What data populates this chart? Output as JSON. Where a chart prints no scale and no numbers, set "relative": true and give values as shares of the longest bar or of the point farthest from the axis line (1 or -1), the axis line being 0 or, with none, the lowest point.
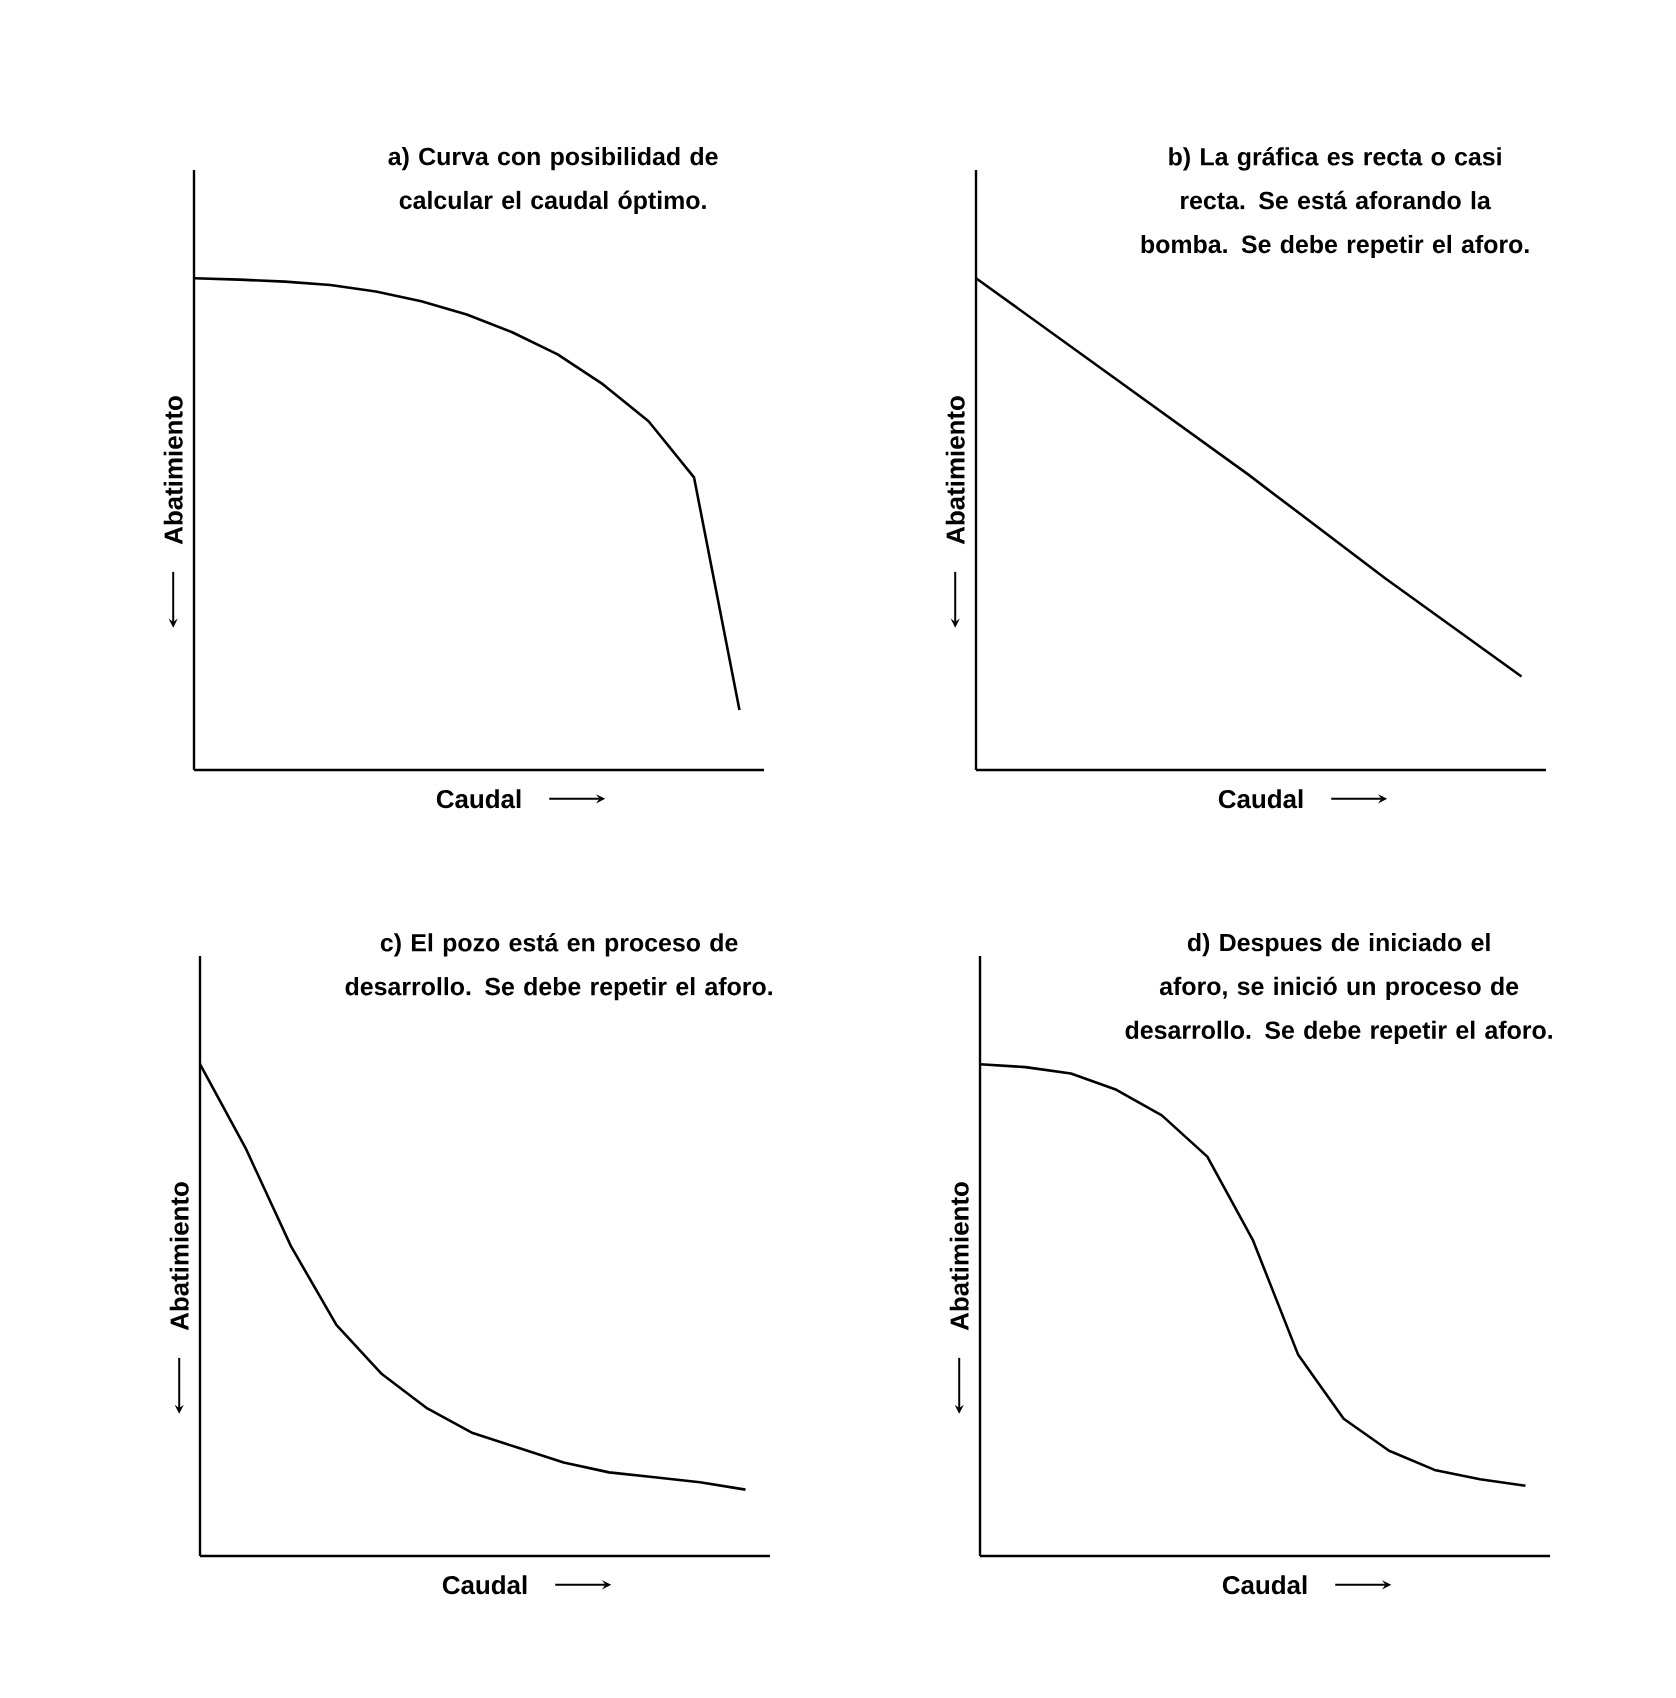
{
  "chart_data": [
    {
      "type": "line",
      "relative": true,
      "xlabel": "Caudal",
      "ylabel": "Abatimiento",
      "annotations": [
        "a) Curva con posibilidad de calcular el caudal óptimo."
      ],
      "categories": [
        null,
        null,
        null,
        null,
        null,
        null,
        null,
        null,
        null,
        null,
        null,
        null,
        null
      ],
      "color": "#000000",
      "values": [
        1,
        0.997,
        0.993,
        0.986,
        0.973,
        0.953,
        0.926,
        0.89,
        0.845,
        0.784,
        0.709,
        0.595,
        0.122
      ]
    },
    {
      "type": "line",
      "relative": true,
      "xlabel": "Caudal",
      "ylabel": "Abatimiento",
      "annotations": [
        "b) La gráfica es recta o casi recta. Se está aforando la bomba. Se debe repetir el aforo."
      ],
      "categories": [
        null,
        null,
        null,
        null,
        null
      ],
      "color": "#000000",
      "values": [
        1,
        0.8,
        0.6,
        0.39,
        0.19
      ]
    },
    {
      "type": "line",
      "relative": true,
      "xlabel": "Caudal",
      "ylabel": "Abatimiento",
      "annotations": [
        "c) El pozo está en proceso de desarrollo. Se debe repetir el aforo."
      ],
      "categories": [
        null,
        null,
        null,
        null,
        null,
        null,
        null,
        null,
        null,
        null,
        null,
        null,
        null
      ],
      "color": "#000000",
      "values": [
        1,
        0.83,
        0.63,
        0.47,
        0.37,
        0.3,
        0.25,
        0.22,
        0.19,
        0.17,
        0.16,
        0.15,
        0.135
      ]
    },
    {
      "type": "line",
      "relative": true,
      "xlabel": "Caudal",
      "ylabel": "Abatimiento",
      "annotations": [
        "d) Despues de iniciado el aforo, se inició un proceso de desarrollo. Se debe repetir el aforo."
      ],
      "categories": [
        null,
        null,
        null,
        null,
        null,
        null,
        null,
        null,
        null,
        null,
        null,
        null,
        null
      ],
      "color": "#000000",
      "values": [
        1,
        0.994,
        0.981,
        0.948,
        0.896,
        0.812,
        0.643,
        0.409,
        0.279,
        0.214,
        0.175,
        0.156,
        0.143
      ]
    }
  ]
}
